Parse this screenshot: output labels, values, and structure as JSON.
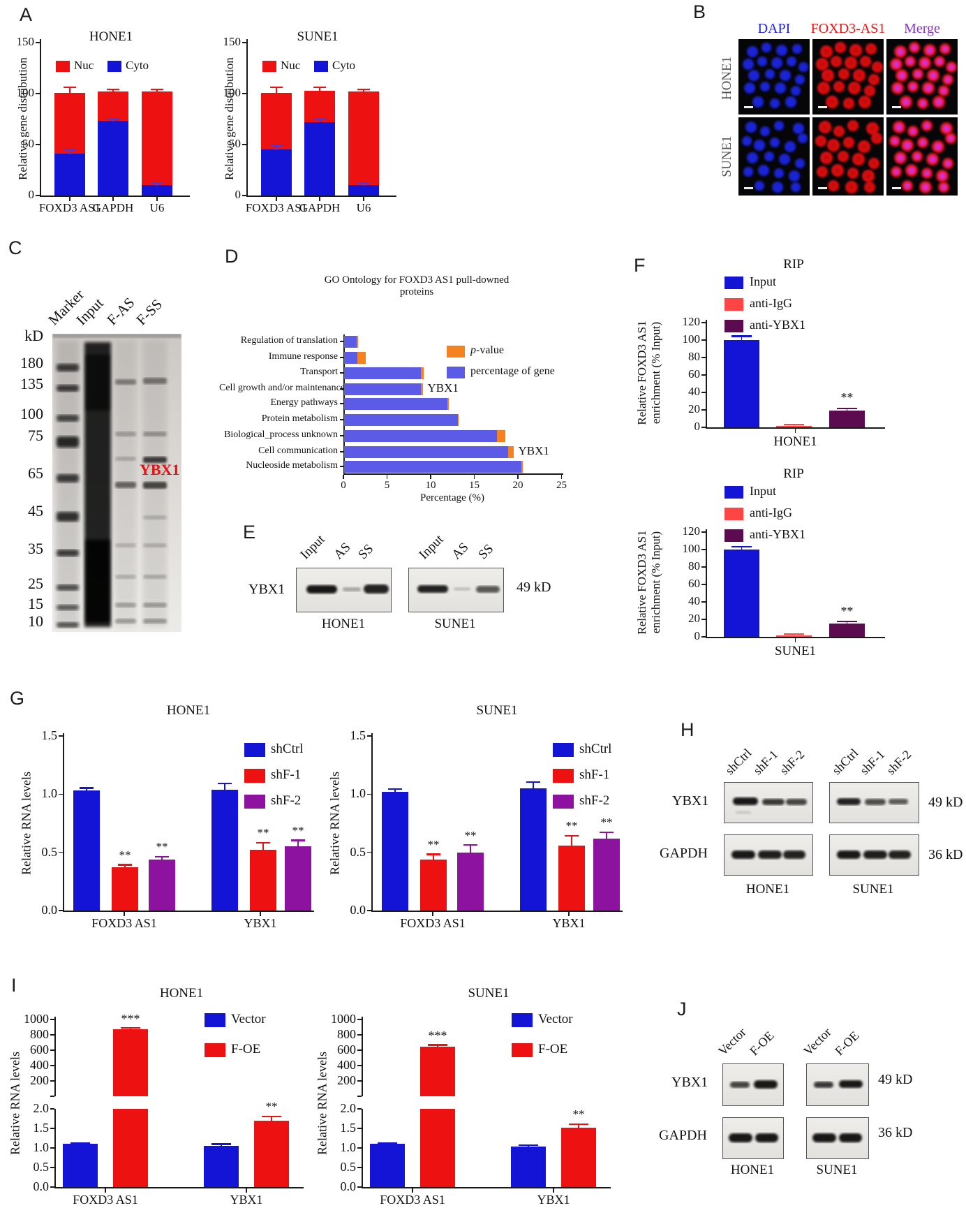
{
  "panels": {
    "A": {
      "letter": "A"
    },
    "B": {
      "letter": "B",
      "columns": [
        {
          "label": "DAPI",
          "color": "#2222ee"
        },
        {
          "label": "FOXD3-AS1",
          "color": "#ee1515"
        },
        {
          "label": "Merge",
          "color": "#8a35c8"
        }
      ],
      "rows": [
        "HONE1",
        "SUNE1"
      ]
    },
    "C": {
      "letter": "C",
      "lanes": [
        "Marker",
        "Input",
        "F-AS",
        "F-SS"
      ],
      "unit": "kD",
      "ladder": [
        180,
        135,
        100,
        75,
        65,
        45,
        35,
        25,
        15,
        10
      ],
      "band": "YBX1",
      "band_color": "#e81010"
    },
    "D": {
      "letter": "D"
    },
    "E": {
      "letter": "E",
      "protein": "YBX1",
      "lanes": [
        "Input",
        "AS",
        "SS"
      ],
      "size": "49 kD",
      "cells": [
        "HONE1",
        "SUNE1"
      ]
    },
    "F": {
      "letter": "F"
    },
    "G": {
      "letter": "G"
    },
    "H": {
      "letter": "H",
      "lanes": [
        "shCtrl",
        "shF-1",
        "shF-2"
      ],
      "proteins": [
        "YBX1",
        "GAPDH"
      ],
      "sizes": [
        "49 kD",
        "36 kD"
      ],
      "cells": [
        "HONE1",
        "SUNE1"
      ]
    },
    "I": {
      "letter": "I"
    },
    "J": {
      "letter": "J",
      "lanes": [
        "Vector",
        "F-OE"
      ],
      "proteins": [
        "YBX1",
        "GAPDH"
      ],
      "sizes": [
        "49 kD",
        "36 kD"
      ],
      "cells": [
        "HONE1",
        "SUNE1"
      ]
    }
  },
  "chart_data": [
    {
      "id": "A_HONE1",
      "type": "bar",
      "subtype": "stacked",
      "title": "HONE1",
      "ylabel": "Relative gene distribution",
      "ylim": [
        0,
        150
      ],
      "yticks": [
        0,
        50,
        100,
        150
      ],
      "categories": [
        "FOXD3 AS1",
        "GAPDH",
        "U6"
      ],
      "series": [
        {
          "name": "Nuc",
          "color": "#ee1111"
        },
        {
          "name": "Cyto",
          "color": "#1414d6"
        }
      ],
      "cyto_values": [
        41,
        73,
        10
      ],
      "total_values": [
        101,
        102,
        102
      ],
      "cyto_err": [
        4,
        2,
        2
      ],
      "total_err": [
        5,
        2,
        1.5
      ]
    },
    {
      "id": "A_SUNE1",
      "type": "bar",
      "subtype": "stacked",
      "title": "SUNE1",
      "ylabel": "Relative gene distribution",
      "ylim": [
        0,
        150
      ],
      "yticks": [
        0,
        50,
        100,
        150
      ],
      "categories": [
        "FOXD3 AS1",
        "GAPDH",
        "U6"
      ],
      "series": [
        {
          "name": "Nuc",
          "color": "#ee1111"
        },
        {
          "name": "Cyto",
          "color": "#1414d6"
        }
      ],
      "cyto_values": [
        45,
        72,
        10
      ],
      "total_values": [
        101,
        103,
        102
      ],
      "cyto_err": [
        4,
        3,
        2
      ],
      "total_err": [
        5,
        3,
        2
      ]
    },
    {
      "id": "D_GO",
      "type": "bar",
      "subtype": "horizontal",
      "title": "GO Ontology for FOXD3 AS1 pull-downed proteins",
      "xlabel": "Percentage (%)",
      "xlim": [
        0,
        25
      ],
      "xticks": [
        0,
        5,
        10,
        15,
        20,
        25
      ],
      "categories": [
        "Regulation of translation",
        "Immune response",
        "Transport",
        "Cell growth and/or maintenance",
        "Energy pathways",
        "Protein metabolism",
        "Biological_process unknown",
        "Cell communication",
        "Nucleoside metabolism"
      ],
      "gene_percent": [
        1.4,
        1.5,
        8.8,
        8.8,
        11.8,
        13.0,
        17.5,
        18.8,
        20.3
      ],
      "p_value_seg": [
        0.2,
        1.0,
        0.3,
        0.2,
        0.2,
        0.15,
        1.0,
        0.6,
        0.2
      ],
      "annotations": [
        {
          "index": 3,
          "label": "YBX1"
        },
        {
          "index": 7,
          "label": "YBX1"
        }
      ],
      "legend": [
        {
          "name": "p-value",
          "color": "#f5821f",
          "italic_first": true
        },
        {
          "name": "percentage of gene",
          "color": "#5b5be8"
        }
      ]
    },
    {
      "id": "F_HONE1",
      "type": "bar",
      "title": "RIP",
      "xlabel": "HONE1",
      "ylabel_lines": [
        "Relative FOXD3 AS1",
        "enrichment (% Input)"
      ],
      "ylim": [
        0,
        120
      ],
      "yticks": [
        0,
        20,
        40,
        60,
        80,
        100,
        120
      ],
      "categories": [
        "Input",
        "anti-IgG",
        "anti-YBX1"
      ],
      "colors": [
        "#1414d6",
        "#ff4444",
        "#5c0b50"
      ],
      "values": [
        100,
        1.5,
        19
      ],
      "errors": [
        4,
        1,
        2.5
      ],
      "stars": [
        "",
        "",
        "**"
      ]
    },
    {
      "id": "F_SUNE1",
      "type": "bar",
      "title": "RIP",
      "xlabel": "SUNE1",
      "ylabel_lines": [
        "Relative FOXD3 AS1",
        "enrichment (% Input)"
      ],
      "ylim": [
        0,
        120
      ],
      "yticks": [
        0,
        20,
        40,
        60,
        80,
        100,
        120
      ],
      "categories": [
        "Input",
        "anti-IgG",
        "anti-YBX1"
      ],
      "colors": [
        "#1414d6",
        "#ff4444",
        "#5c0b50"
      ],
      "values": [
        100,
        2,
        15
      ],
      "errors": [
        3,
        1,
        2
      ],
      "stars": [
        "",
        "",
        "**"
      ]
    },
    {
      "id": "G_HONE1",
      "type": "bar",
      "subtype": "grouped",
      "title": "HONE1",
      "ylabel": "Relative RNA levels",
      "ylim": [
        0,
        1.5
      ],
      "yticks": [
        0,
        0.5,
        1.0,
        1.5
      ],
      "groups": [
        "FOXD3 AS1",
        "YBX1"
      ],
      "series": [
        {
          "name": "shCtrl",
          "color": "#1414d6"
        },
        {
          "name": "shF-1",
          "color": "#ee1111"
        },
        {
          "name": "shF-2",
          "color": "#8d12a0"
        }
      ],
      "values": [
        [
          1.03,
          0.37,
          0.44
        ],
        [
          1.04,
          0.52,
          0.55
        ]
      ],
      "errors": [
        [
          0.02,
          0.02,
          0.02
        ],
        [
          0.05,
          0.06,
          0.05
        ]
      ],
      "stars": [
        [
          "",
          "**",
          "**"
        ],
        [
          "",
          "**",
          "**"
        ]
      ]
    },
    {
      "id": "G_SUNE1",
      "type": "bar",
      "subtype": "grouped",
      "title": "SUNE1",
      "ylabel": "Relative RNA levels",
      "ylim": [
        0,
        1.5
      ],
      "yticks": [
        0,
        0.5,
        1.0,
        1.5
      ],
      "groups": [
        "FOXD3 AS1",
        "YBX1"
      ],
      "series": [
        {
          "name": "shCtrl",
          "color": "#1414d6"
        },
        {
          "name": "shF-1",
          "color": "#ee1111"
        },
        {
          "name": "shF-2",
          "color": "#8d12a0"
        }
      ],
      "values": [
        [
          1.02,
          0.44,
          0.5
        ],
        [
          1.05,
          0.56,
          0.62
        ]
      ],
      "errors": [
        [
          0.02,
          0.04,
          0.06
        ],
        [
          0.05,
          0.08,
          0.05
        ]
      ],
      "stars": [
        [
          "",
          "**",
          "**"
        ],
        [
          "",
          "**",
          "**"
        ]
      ]
    },
    {
      "id": "I_HONE1",
      "type": "bar",
      "subtype": "grouped_broken_axis",
      "title": "HONE1",
      "ylabel": "Relative RNA levels",
      "upper_ylim": [
        0,
        1000
      ],
      "upper_yticks": [
        200,
        400,
        600,
        800,
        1000
      ],
      "lower_ylim": [
        0,
        2
      ],
      "lower_yticks": [
        0,
        0.5,
        1.0,
        1.5,
        2.0
      ],
      "groups": [
        "FOXD3 AS1",
        "YBX1"
      ],
      "series": [
        {
          "name": "Vector",
          "color": "#1414d6"
        },
        {
          "name": "F-OE",
          "color": "#ee1111"
        }
      ],
      "values": [
        [
          1.1,
          870
        ],
        [
          1.05,
          1.7
        ]
      ],
      "errors": [
        [
          0.02,
          15
        ],
        [
          0.04,
          0.1
        ]
      ],
      "stars": [
        [
          "",
          "***"
        ],
        [
          "",
          "**"
        ]
      ]
    },
    {
      "id": "I_SUNE1",
      "type": "bar",
      "subtype": "grouped_broken_axis",
      "title": "SUNE1",
      "ylabel": "Relative RNA levels",
      "upper_ylim": [
        0,
        1000
      ],
      "upper_yticks": [
        200,
        400,
        600,
        800,
        1000
      ],
      "lower_ylim": [
        0,
        2
      ],
      "lower_yticks": [
        0,
        0.5,
        1.0,
        1.5,
        2.0
      ],
      "groups": [
        "FOXD3 AS1",
        "YBX1"
      ],
      "series": [
        {
          "name": "Vector",
          "color": "#1414d6"
        },
        {
          "name": "F-OE",
          "color": "#ee1111"
        }
      ],
      "values": [
        [
          1.1,
          650
        ],
        [
          1.03,
          1.52
        ]
      ],
      "errors": [
        [
          0.02,
          12
        ],
        [
          0.03,
          0.08
        ]
      ],
      "stars": [
        [
          "",
          "***"
        ],
        [
          "",
          "**"
        ]
      ]
    }
  ]
}
